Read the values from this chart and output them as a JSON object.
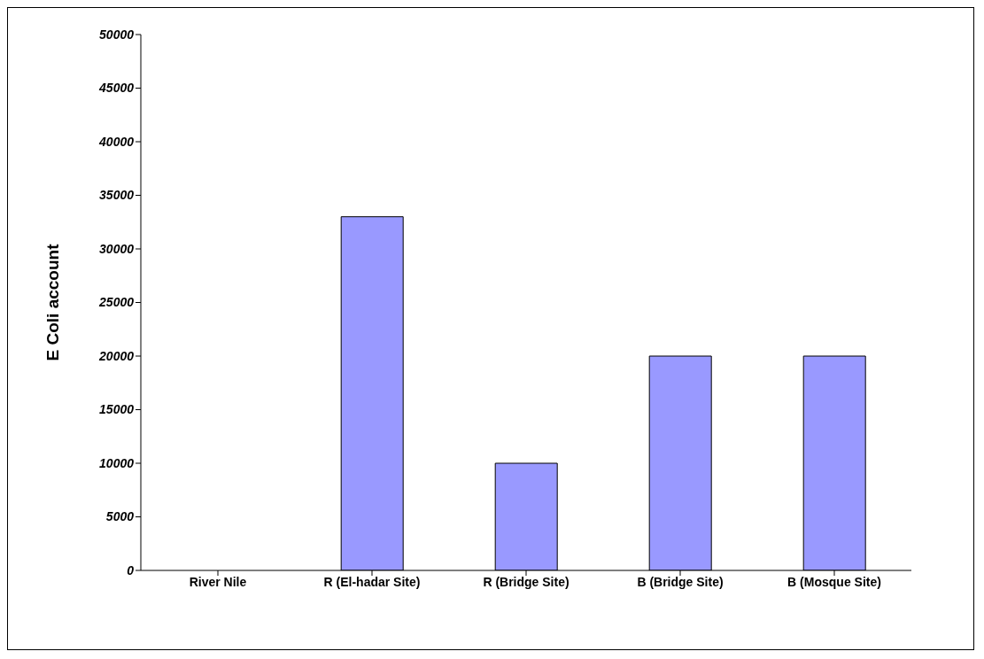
{
  "chart_data": {
    "type": "bar",
    "ylabel": "E Coli account",
    "categories": [
      "River Nile",
      "R (El-hadar Site)",
      "R (Bridge Site)",
      "B (Bridge Site)",
      "B (Mosque Site)"
    ],
    "values": [
      0,
      33000,
      10000,
      20000,
      20000
    ],
    "color": "#9999ff",
    "ylim": [
      0,
      50000
    ],
    "yticks": [
      0,
      5000,
      10000,
      15000,
      20000,
      25000,
      30000,
      35000,
      40000,
      45000,
      50000
    ],
    "grid": false
  }
}
